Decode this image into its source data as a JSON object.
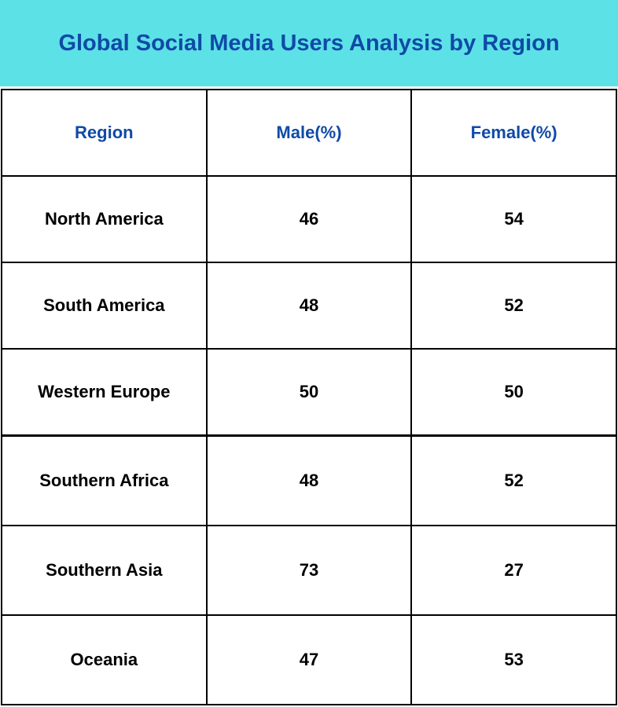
{
  "header": {
    "title": "Global Social Media Users Analysis by Region"
  },
  "table": {
    "columns": [
      "Region",
      "Male(%)",
      "Female(%)"
    ],
    "rows": [
      [
        "North America",
        46,
        54
      ],
      [
        "South America",
        48,
        52
      ],
      [
        "Western Europe",
        50,
        50
      ],
      [
        "Southern Africa",
        48,
        52
      ],
      [
        "Southern Asia",
        73,
        27
      ],
      [
        "Oceania",
        47,
        53
      ]
    ]
  }
}
